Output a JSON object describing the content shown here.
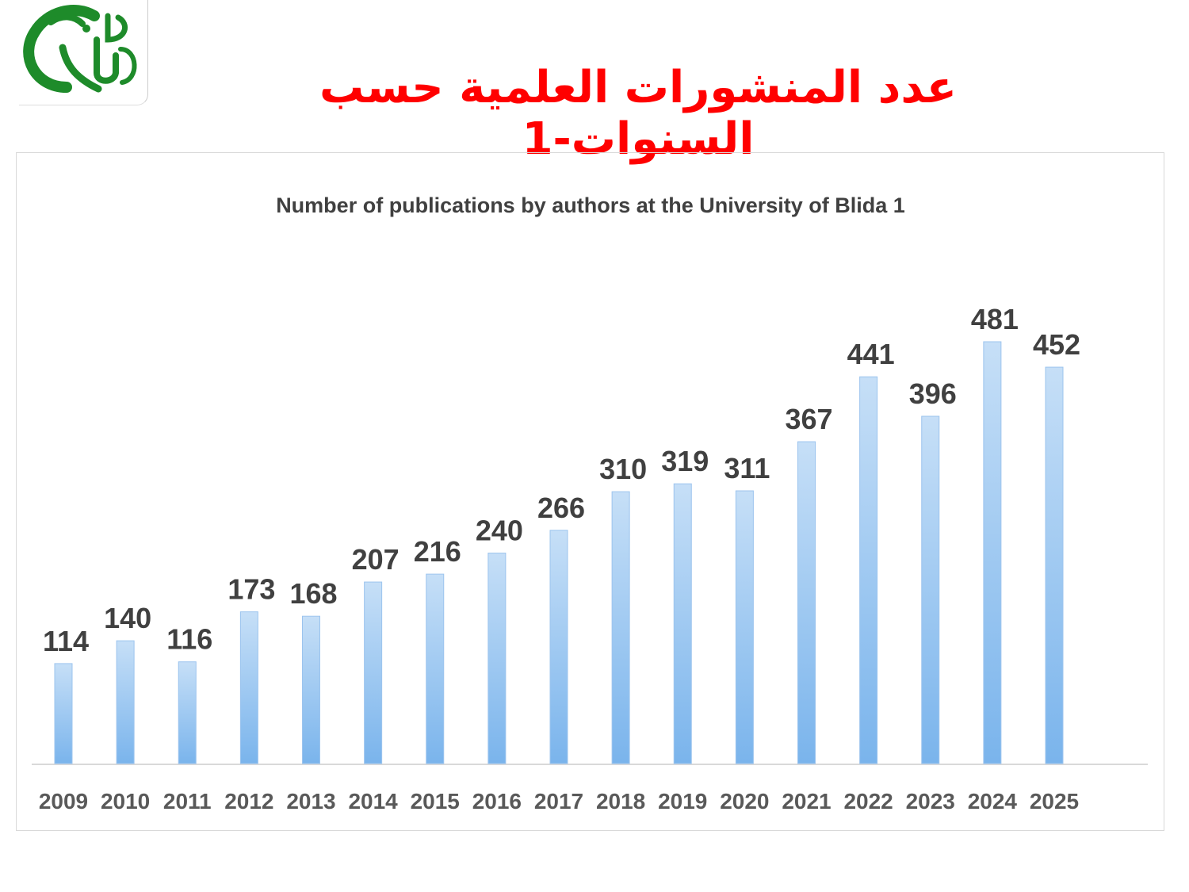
{
  "header": {
    "title": "عدد المنشورات العلمية حسب السنوات-1",
    "logo_text": "UB"
  },
  "chart_data": {
    "type": "bar",
    "title": "Number of publications by authors at the University of Blida 1",
    "categories": [
      "2009",
      "2010",
      "2011",
      "2012",
      "2013",
      "2014",
      "2015",
      "2016",
      "2017",
      "2018",
      "2019",
      "2020",
      "2021",
      "2022",
      "2023",
      "2024",
      "2025"
    ],
    "values": [
      114,
      140,
      116,
      173,
      168,
      207,
      216,
      240,
      266,
      310,
      319,
      311,
      367,
      441,
      396,
      481,
      452
    ],
    "xlabel": "",
    "ylabel": "",
    "ylim": [
      0,
      550
    ],
    "grid": false,
    "legend": "none",
    "colors": {
      "bar_top": "#c6dff7",
      "bar_bottom": "#7ab4ec",
      "bar_border": "#9cc4ee",
      "label": "#404040",
      "title_color": "#ff0000",
      "logo": "#1e8b2a"
    }
  }
}
